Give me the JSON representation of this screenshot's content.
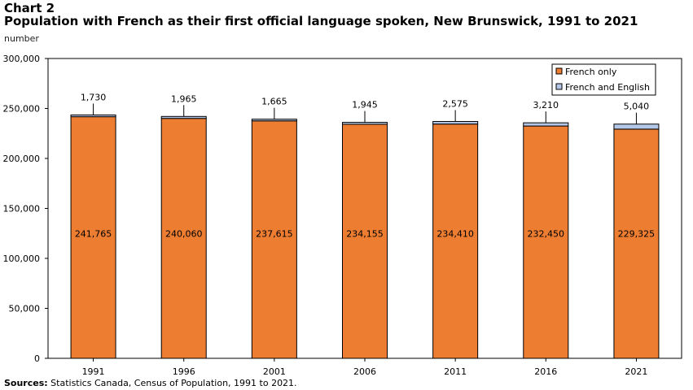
{
  "chart_data": {
    "type": "bar",
    "stacked": true,
    "label": "Chart 2",
    "title": "Population with French as their first official language spoken, New Brunswick, 1991 to 2021",
    "ylabel": "number",
    "xlabel": "",
    "ylim": [
      0,
      300000
    ],
    "yticks": [
      0,
      50000,
      100000,
      150000,
      200000,
      250000,
      300000
    ],
    "ytick_labels": [
      "0",
      "50,000",
      "100,000",
      "150,000",
      "200,000",
      "250,000",
      "300,000"
    ],
    "categories": [
      "1991",
      "1996",
      "2001",
      "2006",
      "2011",
      "2016",
      "2021"
    ],
    "series": [
      {
        "name": "French only",
        "color": "#ed7d31",
        "values": [
          241765,
          240060,
          237615,
          234155,
          234410,
          232450,
          229325
        ],
        "labels": [
          "241,765",
          "240,060",
          "237,615",
          "234,155",
          "234,410",
          "232,450",
          "229,325"
        ]
      },
      {
        "name": "French and English",
        "color": "#b4c7e7",
        "values": [
          1730,
          1965,
          1665,
          1945,
          2575,
          3210,
          5040
        ],
        "labels": [
          "1,730",
          "1,965",
          "1,665",
          "1,945",
          "2,575",
          "3,210",
          "5,040"
        ]
      }
    ],
    "legend_position": "top-right",
    "grid": false
  },
  "source": {
    "label": "Sources:",
    "text": " Statistics Canada, Census of Population, 1991 to 2021."
  }
}
